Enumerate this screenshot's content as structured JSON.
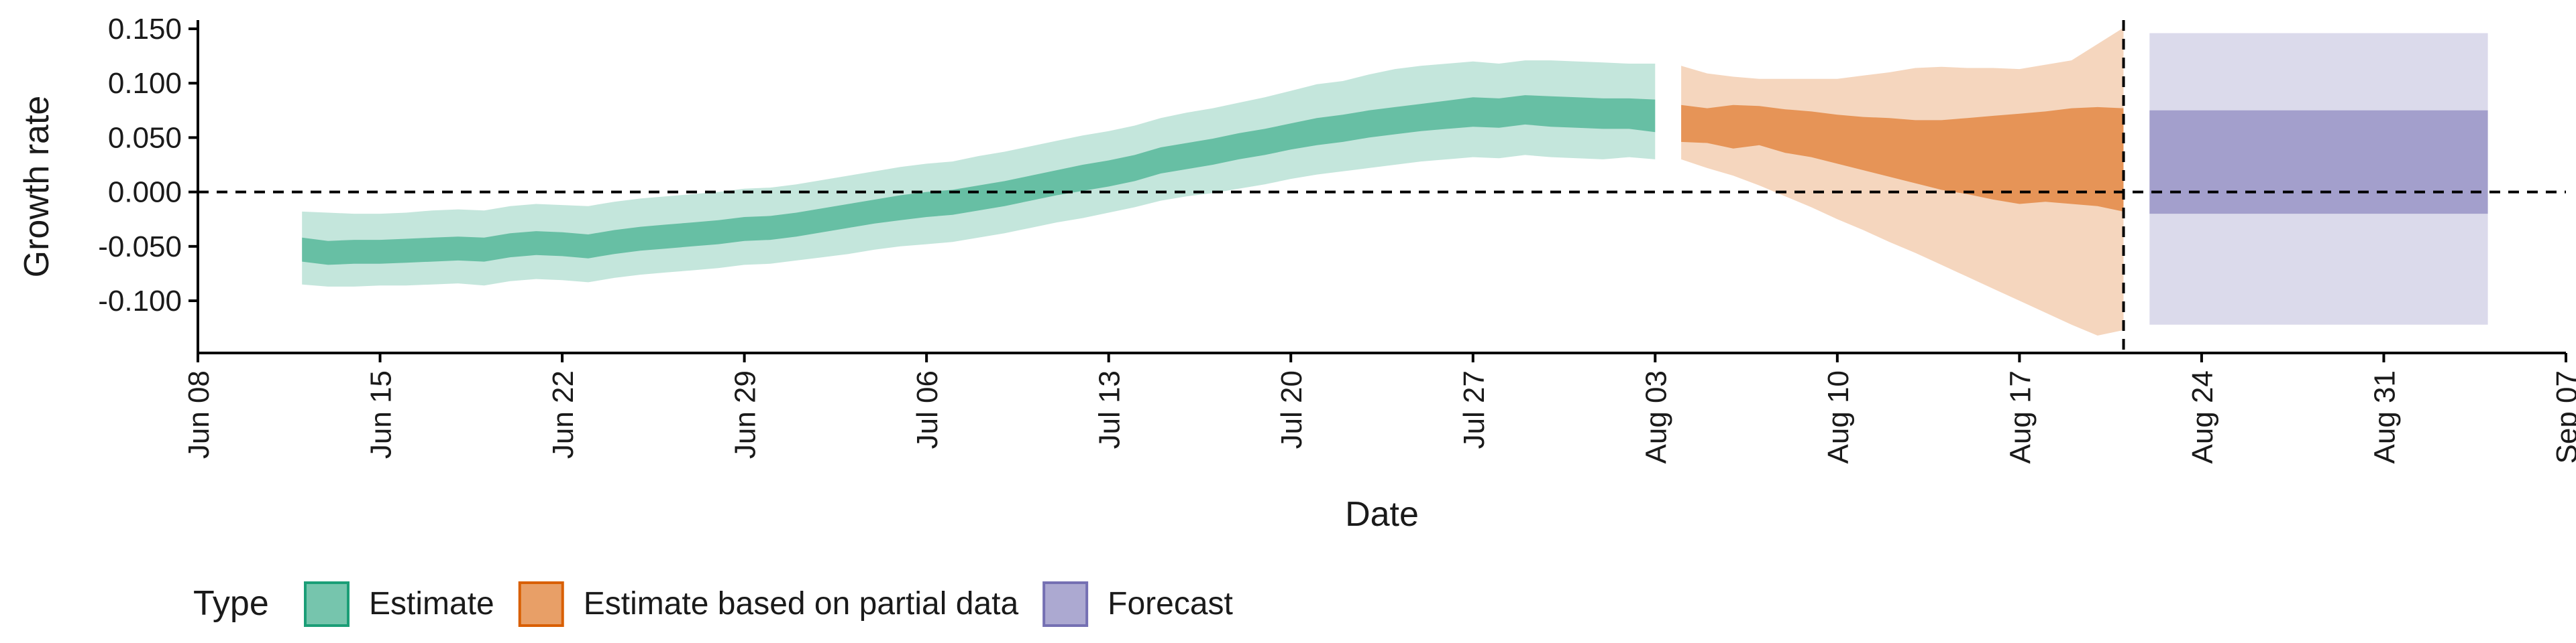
{
  "chart_data": {
    "type": "area",
    "xlabel": "Date",
    "ylabel": "Growth rate",
    "x_axis": {
      "type": "date",
      "range": [
        "2020-06-08",
        "2020-09-07"
      ],
      "ticks": [
        "2020-06-08",
        "2020-06-15",
        "2020-06-22",
        "2020-06-29",
        "2020-07-06",
        "2020-07-13",
        "2020-07-20",
        "2020-07-27",
        "2020-08-03",
        "2020-08-10",
        "2020-08-17",
        "2020-08-24",
        "2020-08-31",
        "2020-09-07"
      ],
      "tick_labels": [
        "Jun 08",
        "Jun 15",
        "Jun 22",
        "Jun 29",
        "Jul 06",
        "Jul 13",
        "Jul 20",
        "Jul 27",
        "Aug 03",
        "Aug 10",
        "Aug 17",
        "Aug 24",
        "Aug 31",
        "Sep 07"
      ]
    },
    "y_axis": {
      "range": [
        -0.148,
        0.158
      ],
      "ticks": [
        0.15,
        0.1,
        0.05,
        0.0,
        -0.05,
        -0.1
      ],
      "tick_labels": [
        "0.150",
        "0.100",
        "0.050",
        "0.000",
        "-0.050",
        "-0.100"
      ]
    },
    "reference_lines": [
      {
        "orientation": "horizontal",
        "y": 0.0,
        "style": "dashed"
      },
      {
        "orientation": "vertical",
        "x": "2020-08-21",
        "style": "dashed"
      }
    ],
    "legend": {
      "title": "Type",
      "position": "bottom-left",
      "items": [
        {
          "label": "Estimate",
          "color": "#1b9e77"
        },
        {
          "label": "Estimate based on partial data",
          "color": "#d95f02"
        },
        {
          "label": "Forecast",
          "color": "#7570b3"
        }
      ]
    },
    "series": [
      {
        "name": "Estimate",
        "color": "#1b9e77",
        "points": [
          {
            "date": "2020-06-12",
            "outer_low": -0.085,
            "outer_high": -0.018,
            "inner_low": -0.064,
            "inner_high": -0.042
          },
          {
            "date": "2020-06-13",
            "outer_low": -0.087,
            "outer_high": -0.019,
            "inner_low": -0.067,
            "inner_high": -0.045
          },
          {
            "date": "2020-06-14",
            "outer_low": -0.087,
            "outer_high": -0.02,
            "inner_low": -0.066,
            "inner_high": -0.044
          },
          {
            "date": "2020-06-15",
            "outer_low": -0.086,
            "outer_high": -0.02,
            "inner_low": -0.066,
            "inner_high": -0.044
          },
          {
            "date": "2020-06-16",
            "outer_low": -0.086,
            "outer_high": -0.019,
            "inner_low": -0.065,
            "inner_high": -0.043
          },
          {
            "date": "2020-06-17",
            "outer_low": -0.085,
            "outer_high": -0.017,
            "inner_low": -0.064,
            "inner_high": -0.042
          },
          {
            "date": "2020-06-18",
            "outer_low": -0.084,
            "outer_high": -0.016,
            "inner_low": -0.063,
            "inner_high": -0.041
          },
          {
            "date": "2020-06-19",
            "outer_low": -0.086,
            "outer_high": -0.017,
            "inner_low": -0.064,
            "inner_high": -0.042
          },
          {
            "date": "2020-06-20",
            "outer_low": -0.082,
            "outer_high": -0.013,
            "inner_low": -0.06,
            "inner_high": -0.038
          },
          {
            "date": "2020-06-21",
            "outer_low": -0.08,
            "outer_high": -0.011,
            "inner_low": -0.058,
            "inner_high": -0.036
          },
          {
            "date": "2020-06-22",
            "outer_low": -0.081,
            "outer_high": -0.012,
            "inner_low": -0.059,
            "inner_high": -0.037
          },
          {
            "date": "2020-06-23",
            "outer_low": -0.083,
            "outer_high": -0.013,
            "inner_low": -0.061,
            "inner_high": -0.039
          },
          {
            "date": "2020-06-24",
            "outer_low": -0.079,
            "outer_high": -0.009,
            "inner_low": -0.057,
            "inner_high": -0.035
          },
          {
            "date": "2020-06-25",
            "outer_low": -0.076,
            "outer_high": -0.006,
            "inner_low": -0.054,
            "inner_high": -0.032
          },
          {
            "date": "2020-06-26",
            "outer_low": -0.074,
            "outer_high": -0.004,
            "inner_low": -0.052,
            "inner_high": -0.03
          },
          {
            "date": "2020-06-27",
            "outer_low": -0.072,
            "outer_high": -0.002,
            "inner_low": -0.05,
            "inner_high": -0.028
          },
          {
            "date": "2020-06-28",
            "outer_low": -0.07,
            "outer_high": 0.0,
            "inner_low": -0.048,
            "inner_high": -0.026
          },
          {
            "date": "2020-06-29",
            "outer_low": -0.067,
            "outer_high": 0.003,
            "inner_low": -0.045,
            "inner_high": -0.023
          },
          {
            "date": "2020-06-30",
            "outer_low": -0.066,
            "outer_high": 0.004,
            "inner_low": -0.044,
            "inner_high": -0.022
          },
          {
            "date": "2020-07-01",
            "outer_low": -0.063,
            "outer_high": 0.007,
            "inner_low": -0.041,
            "inner_high": -0.019
          },
          {
            "date": "2020-07-02",
            "outer_low": -0.06,
            "outer_high": 0.011,
            "inner_low": -0.037,
            "inner_high": -0.015
          },
          {
            "date": "2020-07-03",
            "outer_low": -0.057,
            "outer_high": 0.015,
            "inner_low": -0.033,
            "inner_high": -0.011
          },
          {
            "date": "2020-07-04",
            "outer_low": -0.053,
            "outer_high": 0.019,
            "inner_low": -0.029,
            "inner_high": -0.007
          },
          {
            "date": "2020-07-05",
            "outer_low": -0.05,
            "outer_high": 0.023,
            "inner_low": -0.026,
            "inner_high": -0.003
          },
          {
            "date": "2020-07-06",
            "outer_low": -0.048,
            "outer_high": 0.026,
            "inner_low": -0.023,
            "inner_high": 0.0
          },
          {
            "date": "2020-07-07",
            "outer_low": -0.046,
            "outer_high": 0.028,
            "inner_low": -0.021,
            "inner_high": 0.002
          },
          {
            "date": "2020-07-08",
            "outer_low": -0.042,
            "outer_high": 0.033,
            "inner_low": -0.017,
            "inner_high": 0.006
          },
          {
            "date": "2020-07-09",
            "outer_low": -0.038,
            "outer_high": 0.037,
            "inner_low": -0.013,
            "inner_high": 0.01
          },
          {
            "date": "2020-07-10",
            "outer_low": -0.033,
            "outer_high": 0.042,
            "inner_low": -0.008,
            "inner_high": 0.015
          },
          {
            "date": "2020-07-11",
            "outer_low": -0.028,
            "outer_high": 0.047,
            "inner_low": -0.003,
            "inner_high": 0.02
          },
          {
            "date": "2020-07-12",
            "outer_low": -0.024,
            "outer_high": 0.052,
            "inner_low": 0.001,
            "inner_high": 0.025
          },
          {
            "date": "2020-07-13",
            "outer_low": -0.019,
            "outer_high": 0.056,
            "inner_low": 0.005,
            "inner_high": 0.029
          },
          {
            "date": "2020-07-14",
            "outer_low": -0.014,
            "outer_high": 0.061,
            "inner_low": 0.01,
            "inner_high": 0.034
          },
          {
            "date": "2020-07-15",
            "outer_low": -0.008,
            "outer_high": 0.068,
            "inner_low": 0.017,
            "inner_high": 0.041
          },
          {
            "date": "2020-07-16",
            "outer_low": -0.004,
            "outer_high": 0.073,
            "inner_low": 0.021,
            "inner_high": 0.045
          },
          {
            "date": "2020-07-17",
            "outer_low": -0.001,
            "outer_high": 0.077,
            "inner_low": 0.025,
            "inner_high": 0.049
          },
          {
            "date": "2020-07-18",
            "outer_low": 0.003,
            "outer_high": 0.082,
            "inner_low": 0.03,
            "inner_high": 0.054
          },
          {
            "date": "2020-07-19",
            "outer_low": 0.007,
            "outer_high": 0.087,
            "inner_low": 0.034,
            "inner_high": 0.058
          },
          {
            "date": "2020-07-20",
            "outer_low": 0.012,
            "outer_high": 0.093,
            "inner_low": 0.039,
            "inner_high": 0.063
          },
          {
            "date": "2020-07-21",
            "outer_low": 0.016,
            "outer_high": 0.099,
            "inner_low": 0.043,
            "inner_high": 0.068
          },
          {
            "date": "2020-07-22",
            "outer_low": 0.019,
            "outer_high": 0.102,
            "inner_low": 0.046,
            "inner_high": 0.071
          },
          {
            "date": "2020-07-23",
            "outer_low": 0.022,
            "outer_high": 0.108,
            "inner_low": 0.05,
            "inner_high": 0.075
          },
          {
            "date": "2020-07-24",
            "outer_low": 0.025,
            "outer_high": 0.113,
            "inner_low": 0.053,
            "inner_high": 0.078
          },
          {
            "date": "2020-07-25",
            "outer_low": 0.028,
            "outer_high": 0.116,
            "inner_low": 0.056,
            "inner_high": 0.081
          },
          {
            "date": "2020-07-26",
            "outer_low": 0.03,
            "outer_high": 0.118,
            "inner_low": 0.058,
            "inner_high": 0.084
          },
          {
            "date": "2020-07-27",
            "outer_low": 0.032,
            "outer_high": 0.12,
            "inner_low": 0.06,
            "inner_high": 0.087
          },
          {
            "date": "2020-07-28",
            "outer_low": 0.031,
            "outer_high": 0.118,
            "inner_low": 0.059,
            "inner_high": 0.086
          },
          {
            "date": "2020-07-29",
            "outer_low": 0.034,
            "outer_high": 0.121,
            "inner_low": 0.062,
            "inner_high": 0.089
          },
          {
            "date": "2020-07-30",
            "outer_low": 0.032,
            "outer_high": 0.121,
            "inner_low": 0.06,
            "inner_high": 0.088
          },
          {
            "date": "2020-07-31",
            "outer_low": 0.031,
            "outer_high": 0.12,
            "inner_low": 0.059,
            "inner_high": 0.087
          },
          {
            "date": "2020-08-01",
            "outer_low": 0.03,
            "outer_high": 0.119,
            "inner_low": 0.058,
            "inner_high": 0.086
          },
          {
            "date": "2020-08-02",
            "outer_low": 0.032,
            "outer_high": 0.118,
            "inner_low": 0.058,
            "inner_high": 0.086
          },
          {
            "date": "2020-08-03",
            "outer_low": 0.03,
            "outer_high": 0.118,
            "inner_low": 0.055,
            "inner_high": 0.085
          }
        ]
      },
      {
        "name": "Estimate based on partial data",
        "color": "#d95f02",
        "points": [
          {
            "date": "2020-08-04",
            "outer_low": 0.03,
            "outer_high": 0.116,
            "inner_low": 0.046,
            "inner_high": 0.08
          },
          {
            "date": "2020-08-05",
            "outer_low": 0.022,
            "outer_high": 0.109,
            "inner_low": 0.045,
            "inner_high": 0.077
          },
          {
            "date": "2020-08-06",
            "outer_low": 0.015,
            "outer_high": 0.106,
            "inner_low": 0.04,
            "inner_high": 0.08
          },
          {
            "date": "2020-08-07",
            "outer_low": 0.006,
            "outer_high": 0.104,
            "inner_low": 0.043,
            "inner_high": 0.079
          },
          {
            "date": "2020-08-08",
            "outer_low": -0.004,
            "outer_high": 0.104,
            "inner_low": 0.036,
            "inner_high": 0.076
          },
          {
            "date": "2020-08-09",
            "outer_low": -0.014,
            "outer_high": 0.104,
            "inner_low": 0.032,
            "inner_high": 0.074
          },
          {
            "date": "2020-08-10",
            "outer_low": -0.025,
            "outer_high": 0.104,
            "inner_low": 0.026,
            "inner_high": 0.071
          },
          {
            "date": "2020-08-11",
            "outer_low": -0.035,
            "outer_high": 0.107,
            "inner_low": 0.02,
            "inner_high": 0.069
          },
          {
            "date": "2020-08-12",
            "outer_low": -0.046,
            "outer_high": 0.11,
            "inner_low": 0.014,
            "inner_high": 0.068
          },
          {
            "date": "2020-08-13",
            "outer_low": -0.056,
            "outer_high": 0.114,
            "inner_low": 0.008,
            "inner_high": 0.066
          },
          {
            "date": "2020-08-14",
            "outer_low": -0.067,
            "outer_high": 0.115,
            "inner_low": 0.002,
            "inner_high": 0.066
          },
          {
            "date": "2020-08-15",
            "outer_low": -0.078,
            "outer_high": 0.114,
            "inner_low": -0.002,
            "inner_high": 0.068
          },
          {
            "date": "2020-08-16",
            "outer_low": -0.089,
            "outer_high": 0.114,
            "inner_low": -0.007,
            "inner_high": 0.07
          },
          {
            "date": "2020-08-17",
            "outer_low": -0.1,
            "outer_high": 0.113,
            "inner_low": -0.011,
            "inner_high": 0.072
          },
          {
            "date": "2020-08-18",
            "outer_low": -0.111,
            "outer_high": 0.117,
            "inner_low": -0.009,
            "inner_high": 0.074
          },
          {
            "date": "2020-08-19",
            "outer_low": -0.122,
            "outer_high": 0.121,
            "inner_low": -0.011,
            "inner_high": 0.077
          },
          {
            "date": "2020-08-20",
            "outer_low": -0.132,
            "outer_high": 0.136,
            "inner_low": -0.013,
            "inner_high": 0.078
          },
          {
            "date": "2020-08-21",
            "outer_low": -0.127,
            "outer_high": 0.151,
            "inner_low": -0.018,
            "inner_high": 0.077
          }
        ]
      },
      {
        "name": "Forecast",
        "color": "#7570b3",
        "points": [
          {
            "date": "2020-08-22",
            "outer_low": -0.122,
            "outer_high": 0.146,
            "inner_low": -0.02,
            "inner_high": 0.075
          },
          {
            "date": "2020-09-04",
            "outer_low": -0.122,
            "outer_high": 0.146,
            "inner_low": -0.02,
            "inner_high": 0.075
          }
        ]
      }
    ]
  }
}
